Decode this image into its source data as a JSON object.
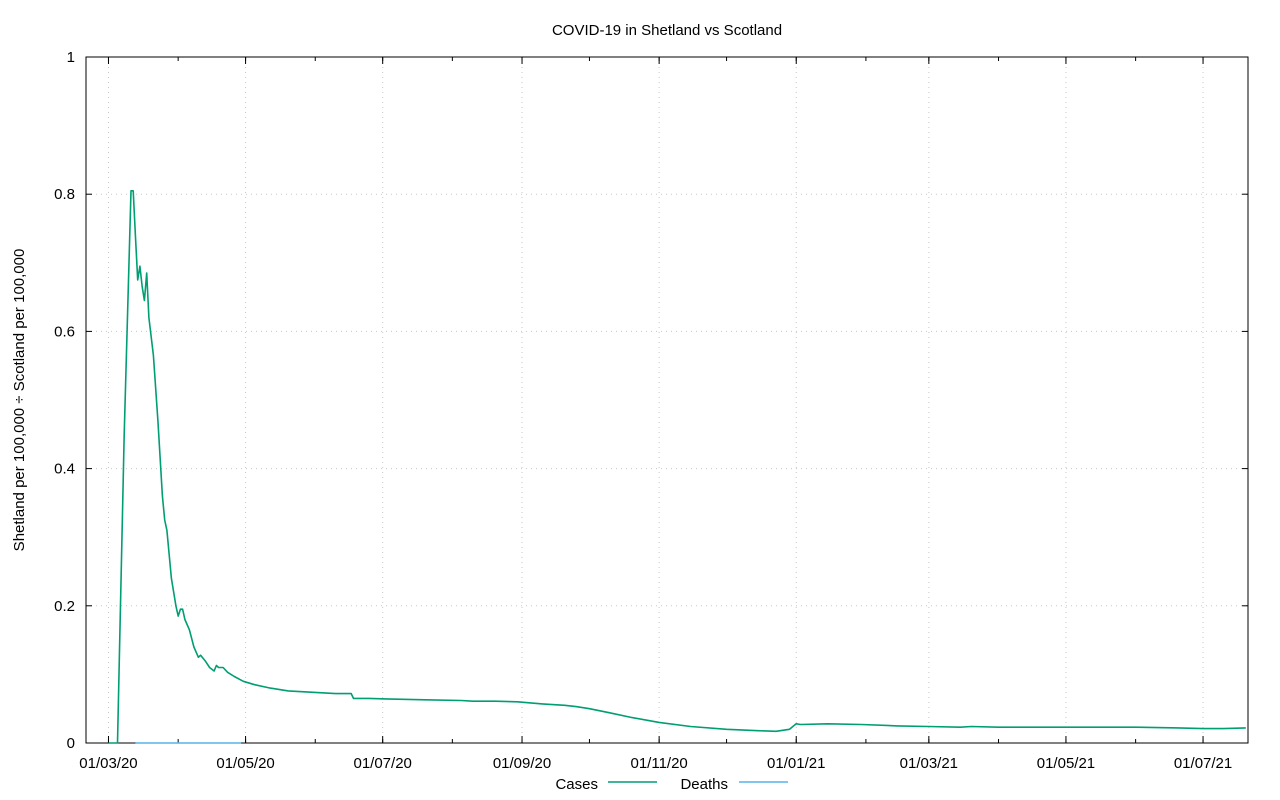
{
  "chart_data": {
    "type": "line",
    "title": "COVID-19 in Shetland vs Scotland",
    "xlabel": "",
    "ylabel": "Shetland per 100,000 ÷ Scotland per 100,000",
    "xlim": [
      "2020-02-20",
      "2021-07-21"
    ],
    "ylim": [
      0,
      1
    ],
    "grid": true,
    "legend_position": "bottom",
    "x_tick_labels": [
      "01/03/20",
      "01/05/20",
      "01/07/20",
      "01/09/20",
      "01/11/20",
      "01/01/21",
      "01/03/21",
      "01/05/21",
      "01/07/21"
    ],
    "y_tick_labels": [
      "0",
      "0.2",
      "0.4",
      "0.6",
      "0.8",
      "1"
    ],
    "series": [
      {
        "name": "Cases",
        "color": "#009e73",
        "points": [
          [
            "2020-03-01",
            0
          ],
          [
            "2020-03-05",
            0
          ],
          [
            "2020-03-08",
            0.45
          ],
          [
            "2020-03-11",
            0.805
          ],
          [
            "2020-03-12",
            0.805
          ],
          [
            "2020-03-13",
            0.74
          ],
          [
            "2020-03-14",
            0.675
          ],
          [
            "2020-03-15",
            0.695
          ],
          [
            "2020-03-16",
            0.665
          ],
          [
            "2020-03-17",
            0.645
          ],
          [
            "2020-03-18",
            0.685
          ],
          [
            "2020-03-19",
            0.62
          ],
          [
            "2020-03-21",
            0.565
          ],
          [
            "2020-03-23",
            0.47
          ],
          [
            "2020-03-25",
            0.36
          ],
          [
            "2020-03-26",
            0.325
          ],
          [
            "2020-03-27",
            0.31
          ],
          [
            "2020-03-29",
            0.24
          ],
          [
            "2020-03-31",
            0.2
          ],
          [
            "2020-04-01",
            0.185
          ],
          [
            "2020-04-02",
            0.195
          ],
          [
            "2020-04-03",
            0.195
          ],
          [
            "2020-04-04",
            0.18
          ],
          [
            "2020-04-06",
            0.165
          ],
          [
            "2020-04-08",
            0.14
          ],
          [
            "2020-04-10",
            0.125
          ],
          [
            "2020-04-11",
            0.128
          ],
          [
            "2020-04-13",
            0.12
          ],
          [
            "2020-04-15",
            0.11
          ],
          [
            "2020-04-17",
            0.105
          ],
          [
            "2020-04-18",
            0.113
          ],
          [
            "2020-04-19",
            0.11
          ],
          [
            "2020-04-21",
            0.11
          ],
          [
            "2020-04-23",
            0.103
          ],
          [
            "2020-04-26",
            0.097
          ],
          [
            "2020-04-30",
            0.09
          ],
          [
            "2020-05-05",
            0.085
          ],
          [
            "2020-05-12",
            0.08
          ],
          [
            "2020-05-20",
            0.076
          ],
          [
            "2020-05-30",
            0.074
          ],
          [
            "2020-06-10",
            0.072
          ],
          [
            "2020-06-17",
            0.072
          ],
          [
            "2020-06-18",
            0.065
          ],
          [
            "2020-06-25",
            0.065
          ],
          [
            "2020-07-05",
            0.064
          ],
          [
            "2020-07-20",
            0.063
          ],
          [
            "2020-08-05",
            0.062
          ],
          [
            "2020-08-10",
            0.061
          ],
          [
            "2020-08-20",
            0.061
          ],
          [
            "2020-08-30",
            0.06
          ],
          [
            "2020-09-10",
            0.057
          ],
          [
            "2020-09-20",
            0.055
          ],
          [
            "2020-09-25",
            0.053
          ],
          [
            "2020-10-01",
            0.05
          ],
          [
            "2020-10-10",
            0.044
          ],
          [
            "2020-10-20",
            0.037
          ],
          [
            "2020-11-01",
            0.03
          ],
          [
            "2020-11-15",
            0.024
          ],
          [
            "2020-12-01",
            0.02
          ],
          [
            "2020-12-15",
            0.018
          ],
          [
            "2020-12-23",
            0.017
          ],
          [
            "2020-12-29",
            0.02
          ],
          [
            "2021-01-01",
            0.028
          ],
          [
            "2021-01-03",
            0.027
          ],
          [
            "2021-01-15",
            0.028
          ],
          [
            "2021-01-30",
            0.027
          ],
          [
            "2021-02-15",
            0.025
          ],
          [
            "2021-03-01",
            0.024
          ],
          [
            "2021-03-15",
            0.023
          ],
          [
            "2021-03-20",
            0.024
          ],
          [
            "2021-04-01",
            0.023
          ],
          [
            "2021-05-01",
            0.023
          ],
          [
            "2021-06-01",
            0.023
          ],
          [
            "2021-06-20",
            0.022
          ],
          [
            "2021-07-01",
            0.021
          ],
          [
            "2021-07-10",
            0.021
          ],
          [
            "2021-07-20",
            0.022
          ]
        ]
      },
      {
        "name": "Deaths",
        "color": "#56b4e9",
        "points": [
          [
            "2020-03-13",
            0
          ],
          [
            "2020-04-29",
            0
          ]
        ]
      }
    ]
  }
}
